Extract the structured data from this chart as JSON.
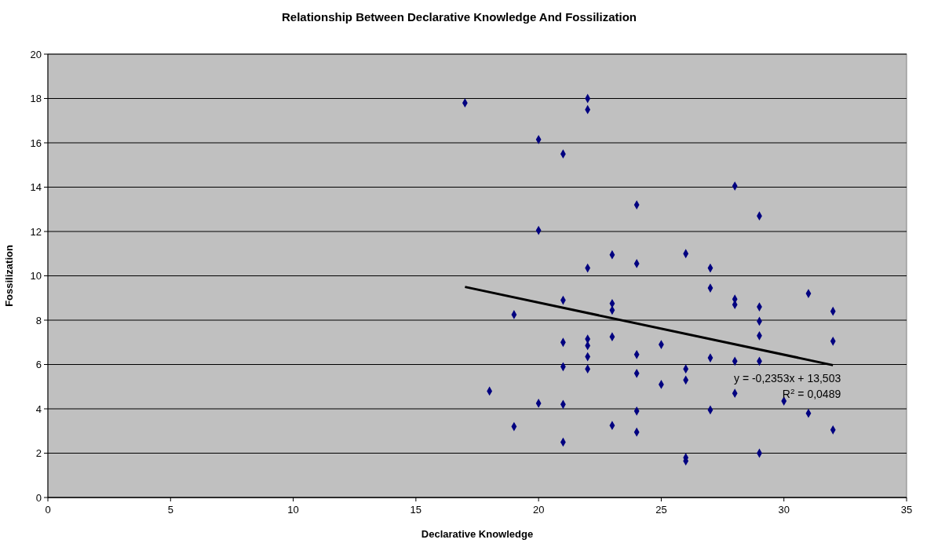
{
  "chart_data": {
    "type": "scatter",
    "title": "Relationship Between Declarative Knowledge And Fossilization",
    "xlabel": "Declarative Knowledge",
    "ylabel": "Fossilization",
    "xlim": [
      0,
      35
    ],
    "xticks": [
      0,
      5,
      10,
      15,
      20,
      25,
      30,
      35
    ],
    "ylim": [
      0,
      20
    ],
    "yticks": [
      0,
      2,
      4,
      6,
      8,
      10,
      12,
      14,
      16,
      18,
      20
    ],
    "grid": "y",
    "series": [
      {
        "color": "#000080",
        "marker": "diamond",
        "x": [
          17,
          18,
          19,
          19,
          20,
          20,
          20,
          21,
          21,
          21,
          21,
          21,
          21,
          22,
          22,
          22,
          22,
          22,
          22,
          22,
          23,
          23,
          23,
          23,
          23,
          24,
          24,
          24,
          24,
          24,
          24,
          25,
          25,
          26,
          26,
          26,
          26,
          26,
          27,
          27,
          27,
          27,
          28,
          28,
          28,
          28,
          28,
          29,
          29,
          29,
          29,
          29,
          29,
          30,
          31,
          31,
          32,
          32,
          32
        ],
        "values": [
          17.8,
          4.8,
          8.25,
          3.2,
          16.15,
          12.05,
          4.25,
          15.5,
          8.9,
          7.0,
          5.9,
          4.2,
          2.5,
          18.0,
          17.5,
          10.35,
          7.15,
          6.85,
          6.35,
          5.8,
          10.95,
          8.75,
          8.45,
          7.25,
          3.25,
          13.2,
          10.55,
          6.45,
          5.6,
          3.9,
          2.95,
          6.9,
          5.1,
          11.0,
          5.8,
          5.3,
          1.8,
          1.65,
          10.35,
          9.45,
          6.3,
          3.95,
          14.05,
          8.95,
          8.7,
          6.15,
          4.7,
          12.7,
          8.6,
          7.95,
          7.3,
          6.15,
          2.0,
          4.35,
          9.2,
          3.8,
          8.4,
          7.05,
          3.05
        ]
      },
      {
        "type": "line",
        "color": "#000000",
        "marker": "none",
        "line_style": "solid",
        "x": [
          17,
          32
        ],
        "values": [
          9.5,
          5.97
        ]
      }
    ],
    "annotations": [
      "y = -0,2353x + 13,503",
      "R$^{2}$ = 0,0489"
    ]
  }
}
